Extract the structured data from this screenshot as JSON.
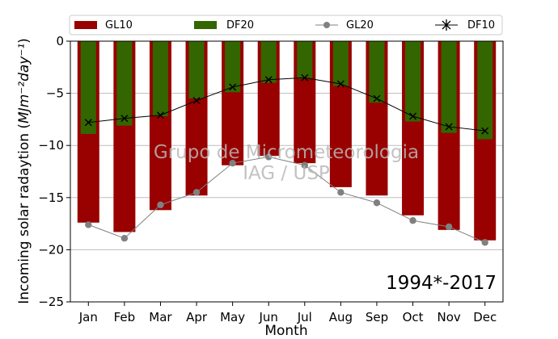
{
  "chart_data": {
    "type": "bar",
    "categories": [
      "Jan",
      "Feb",
      "Mar",
      "Apr",
      "May",
      "Jun",
      "Jul",
      "Aug",
      "Sep",
      "Oct",
      "Nov",
      "Dec"
    ],
    "series": [
      {
        "name": "GL10",
        "kind": "bar",
        "color": "#990000",
        "values": [
          -17.4,
          -18.3,
          -16.2,
          -14.8,
          -11.9,
          -11.0,
          -11.7,
          -14.0,
          -14.8,
          -16.7,
          -18.1,
          -19.1
        ]
      },
      {
        "name": "DF20",
        "kind": "bar",
        "color": "#336600",
        "values": [
          -8.9,
          -8.1,
          -7.2,
          -5.5,
          -4.9,
          -4.0,
          -3.6,
          -4.3,
          -5.9,
          -7.7,
          -8.8,
          -9.4
        ]
      },
      {
        "name": "GL20",
        "kind": "line",
        "color": "#808080",
        "marker": "circle",
        "values": [
          -17.6,
          -18.9,
          -15.7,
          -14.5,
          -11.7,
          -11.1,
          -11.9,
          -14.5,
          -15.5,
          -17.2,
          -17.8,
          -19.3
        ]
      },
      {
        "name": "DF10",
        "kind": "line",
        "color": "#000000",
        "marker": "x",
        "values": [
          -7.8,
          -7.4,
          -7.1,
          -5.7,
          -4.4,
          -3.7,
          -3.5,
          -4.1,
          -5.5,
          -7.2,
          -8.2,
          -8.6
        ]
      }
    ],
    "xlabel": "Month",
    "ylabel_main": "Incoming solar radaytion (",
    "ylabel_units": "MJm⁻²day⁻¹",
    "ylabel_close": ")",
    "ylim": [
      -25,
      0
    ],
    "yticks": [
      0,
      -5,
      -10,
      -15,
      -20,
      -25
    ],
    "ytick_labels": [
      "0",
      "−5",
      "−10",
      "−15",
      "−20",
      "−25"
    ],
    "grid": "horizontal",
    "legend_position": "top"
  },
  "annotations": {
    "watermark_line1": "Grupo de Micrometeorologia",
    "watermark_line2": "IAG / USP",
    "period": "1994*-2017"
  }
}
